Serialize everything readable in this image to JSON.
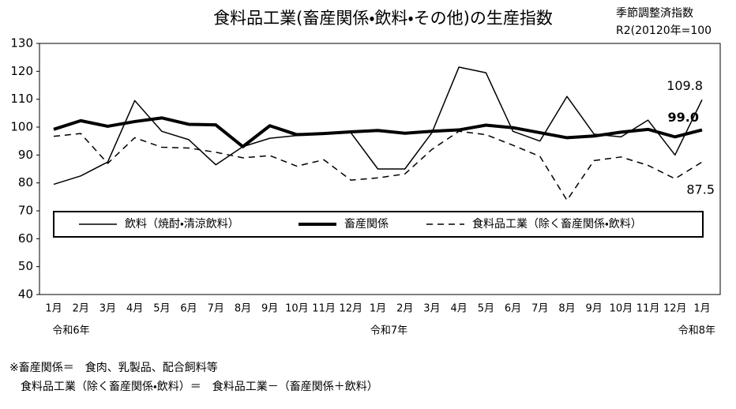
{
  "chart_data": {
    "type": "line",
    "title": "食料品工業(畜産関係・飲料・その他)の生産指数",
    "notes": [
      "季節調整済指数",
      "R2(20120年=100"
    ],
    "categories": [
      "1月",
      "2月",
      "3月",
      "4月",
      "5月",
      "6月",
      "7月",
      "8月",
      "9月",
      "10月",
      "11月",
      "12月",
      "1月",
      "2月",
      "3月",
      "4月",
      "5月",
      "6月",
      "7月",
      "8月",
      "9月",
      "10月",
      "11月",
      "12月",
      "1月"
    ],
    "periods": [
      "令和6年",
      null,
      null,
      null,
      null,
      null,
      null,
      null,
      null,
      null,
      null,
      null,
      "令和7年",
      null,
      null,
      null,
      null,
      null,
      null,
      null,
      null,
      null,
      null,
      null,
      "令和8年"
    ],
    "series": [
      {
        "name": "飲料（焼酎・清涼飲料）",
        "color": "#000000",
        "line_width": 1.5,
        "dashed": false,
        "values": [
          79.5,
          82.5,
          87.5,
          109.5,
          98.5,
          95.5,
          86.5,
          93,
          96,
          97,
          97.5,
          98,
          85,
          85,
          98,
          121.5,
          119.5,
          98.5,
          95,
          111,
          97.5,
          96.5,
          102.5,
          90,
          109.8
        ],
        "value_labels": [
          null,
          null,
          null,
          null,
          null,
          null,
          null,
          null,
          null,
          null,
          null,
          null,
          null,
          null,
          null,
          null,
          null,
          null,
          null,
          null,
          null,
          null,
          null,
          null,
          "109.8"
        ]
      },
      {
        "name": "畜産関係",
        "color": "#000000",
        "line_width": 4,
        "dashed": false,
        "values": [
          99.2,
          102.3,
          100.3,
          102,
          103.3,
          101,
          100.8,
          93,
          100.5,
          97.3,
          97.7,
          98.3,
          98.8,
          97.8,
          98.5,
          99,
          100.7,
          99.8,
          98,
          96.2,
          96.8,
          98.2,
          99.2,
          96.5,
          99.0
        ],
        "value_labels": [
          null,
          null,
          null,
          null,
          null,
          null,
          null,
          null,
          null,
          null,
          null,
          null,
          null,
          null,
          null,
          null,
          null,
          null,
          null,
          null,
          null,
          null,
          null,
          null,
          "99.0"
        ]
      },
      {
        "name": "食料品工業（除く畜産関係・飲料）",
        "color": "#000000",
        "line_width": 1.5,
        "dashed": true,
        "values": [
          96.7,
          97.7,
          87,
          96.2,
          92.8,
          92.5,
          91,
          89,
          89.8,
          86,
          88.3,
          81,
          81.8,
          83.2,
          92,
          98.5,
          97.3,
          93.5,
          89.5,
          73.8,
          88,
          89.3,
          86.3,
          81.5,
          87.5
        ],
        "value_labels": [
          null,
          null,
          null,
          null,
          null,
          null,
          null,
          null,
          null,
          null,
          null,
          null,
          null,
          null,
          null,
          null,
          null,
          null,
          null,
          null,
          null,
          null,
          null,
          null,
          "87.5"
        ]
      }
    ],
    "ylim": [
      40,
      130
    ],
    "yticks": [
      40,
      50,
      60,
      70,
      80,
      90,
      100,
      110,
      120,
      130
    ],
    "grid": false,
    "footnotes": [
      "※畜産関係＝　食肉、乳製品、配合飼料等",
      "　食料品工業（除く畜産関係・飲料）＝　食料品工業－（畜産関係＋飲料）"
    ]
  }
}
